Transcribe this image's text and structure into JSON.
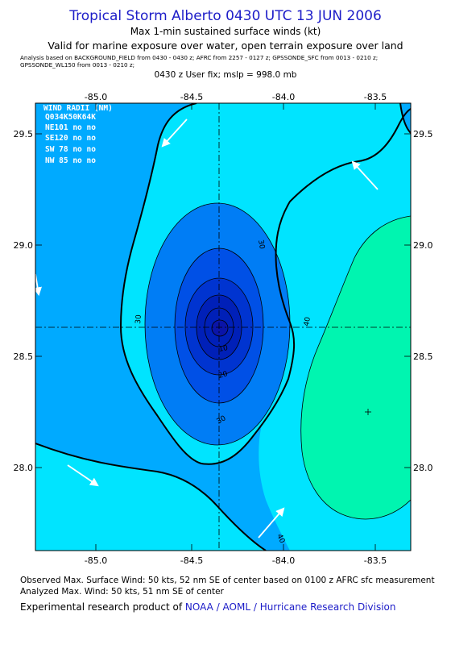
{
  "header": {
    "title": "Tropical Storm Alberto 0430 UTC 13 JUN 2006",
    "subtitle1": "Max 1-min sustained surface winds (kt)",
    "subtitle2": "Valid for marine exposure over water, open terrain exposure over land",
    "analysis_line1": "Analysis based on  BACKGROUND_FIELD from 0430 - 0430 z;  AFRC from 2257 - 0127 z;  GPSSONDE_SFC from 0013 - 0210 z;",
    "analysis_line2": "GPSSONDE_WL150 from 0013 - 0210 z;",
    "fix_line": "0430 z User fix; mslp = 998.0 mb"
  },
  "map": {
    "lon_ticks": [
      "-85.0",
      "-84.5",
      "-84.0",
      "-83.5"
    ],
    "lat_ticks": [
      "29.5",
      "29.0",
      "28.5",
      "28.0"
    ],
    "contour_labels": [
      "30",
      "30",
      "30",
      "40",
      "40",
      "20",
      "10"
    ],
    "wind_radii": {
      "header": "WIND RADII (NM)",
      "columns": "Q034K50K64K",
      "rows": [
        "NE101 no no",
        "SE120 no no",
        "SW 78 no no",
        "NW 85 no no"
      ]
    },
    "colors": {
      "band_lt30": "#00aaff",
      "band_30_40": "#00e4ff",
      "band_40_50": "#00f5b0",
      "inner_1": "#007df5",
      "inner_2": "#0050e6",
      "inner_3": "#0034d0",
      "inner_4": "#0020b8",
      "core": "#0a14a8"
    }
  },
  "footer": {
    "line1": "Observed Max. Surface Wind: 50 kts, 52 nm SE of center based on 0100 z AFRC sfc measurement",
    "line2": "Analyzed Max. Wind: 50 kts, 51 nm SE of center",
    "line3_prefix": "Experimental research product of ",
    "line3_org": "NOAA / AOML / Hurricane Research Division"
  }
}
